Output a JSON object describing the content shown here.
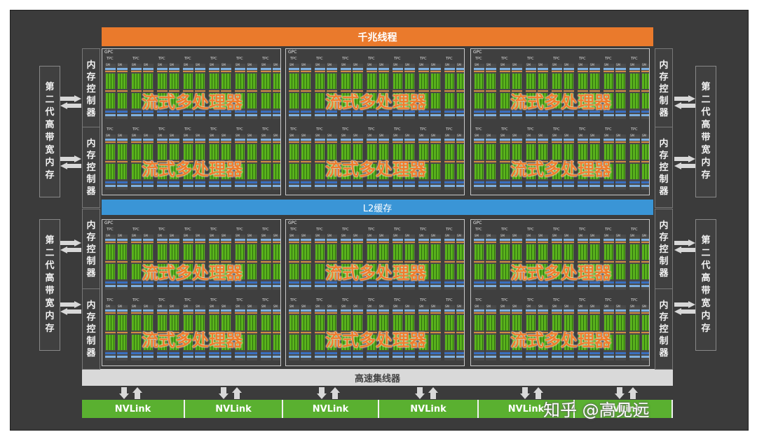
{
  "labels": {
    "top_bar": "千兆线程",
    "l2_cache": "L2缓存",
    "bus": "高速集线器",
    "gpc": "GPC",
    "tpc": "TPC",
    "sm": "SM",
    "sm_overlay": "流式多处理器",
    "mem_controller": [
      "内",
      "存",
      "控",
      "制",
      "器"
    ],
    "hbm": [
      "第",
      "二",
      "代",
      "高",
      "带",
      "宽",
      "内",
      "存"
    ],
    "nvlink": "NVLink"
  },
  "watermark": "知乎 @高见远",
  "colors": {
    "chip_bg": "#3b3b3b",
    "top_bar": "#ea7a2c",
    "l2_cache": "#3a95d6",
    "bus": "#d9d9d9",
    "nvlink": "#5ab030",
    "cores": "#59b21c",
    "overlay_text": "#ef7d2d"
  },
  "counts": {
    "gpc_rows": 2,
    "gpc_per_row": 3,
    "tpc_per_row_in_gpc": 7,
    "tpc_rows_in_gpc": 2,
    "sm_per_tpc": 2,
    "mem_controllers_per_side": 4,
    "hbm_per_side": 2,
    "nvlink_ports": 6
  }
}
